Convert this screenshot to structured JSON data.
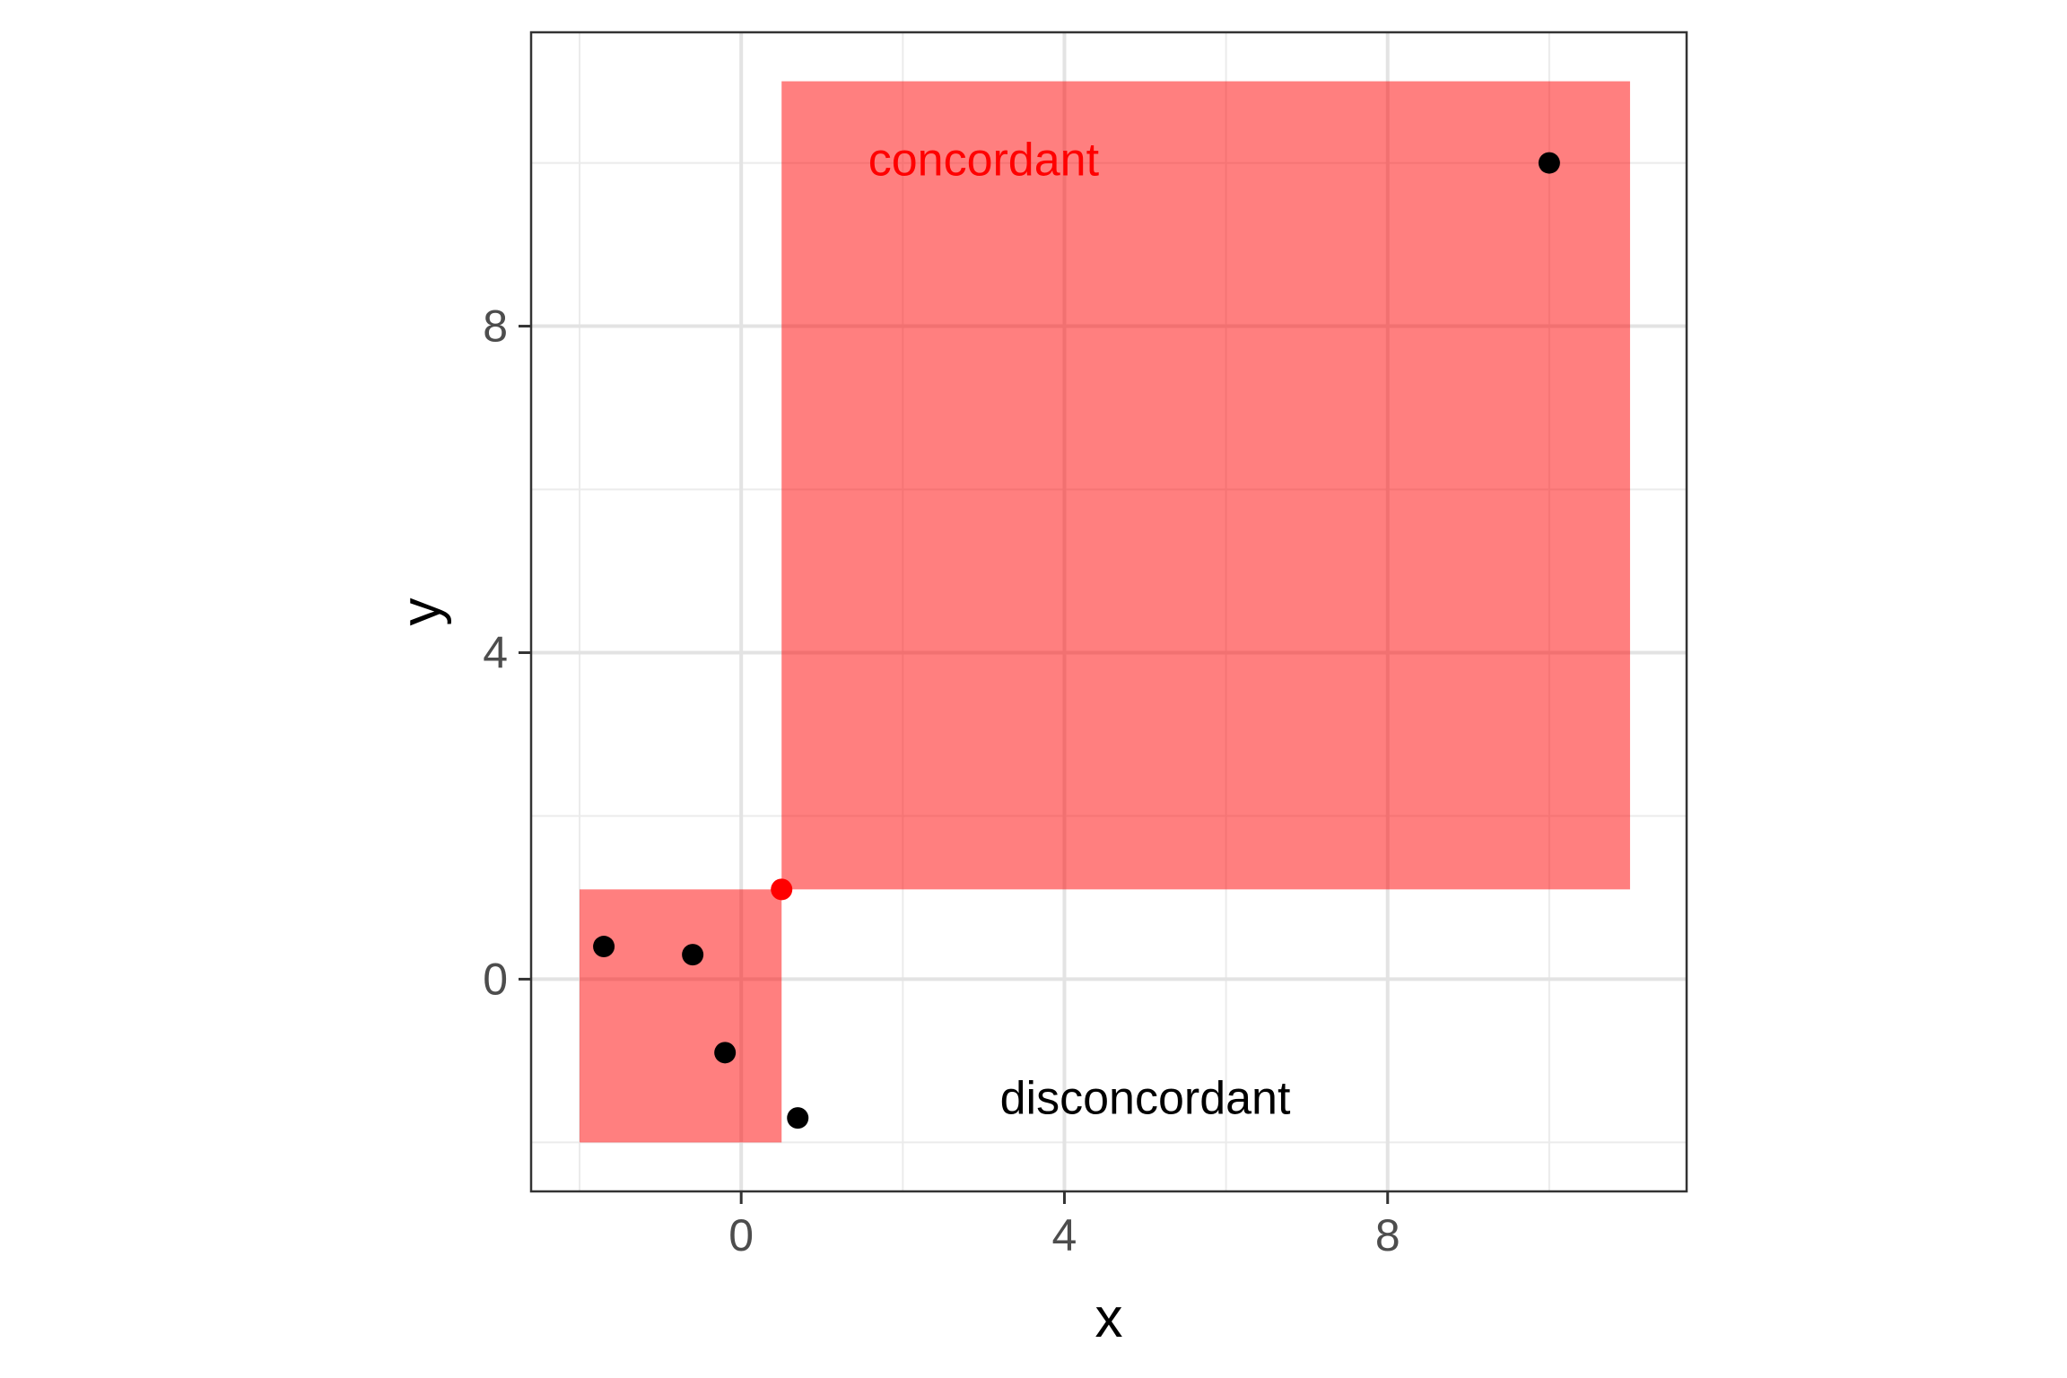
{
  "chart_data": {
    "type": "scatter",
    "title": "",
    "xlabel": "x",
    "ylabel": "y",
    "xlim": [
      -2.6,
      11.7
    ],
    "ylim": [
      -2.6,
      11.6
    ],
    "x_ticks": [
      0,
      4,
      8
    ],
    "y_ticks": [
      0,
      4,
      8
    ],
    "x_minor": [
      -2,
      2,
      6,
      10
    ],
    "y_minor": [
      -2,
      2,
      6,
      10
    ],
    "grid": true,
    "regions": [
      {
        "x_range": [
          0.5,
          11.0
        ],
        "y_range": [
          1.1,
          11.0
        ],
        "color": "#FF0000",
        "opacity": 0.5
      },
      {
        "x_range": [
          -2.0,
          0.5
        ],
        "y_range": [
          -2.0,
          1.1
        ],
        "color": "#FF0000",
        "opacity": 0.5
      }
    ],
    "points": [
      {
        "x": -1.7,
        "y": 0.4,
        "color": "#000000"
      },
      {
        "x": -0.6,
        "y": 0.3,
        "color": "#000000"
      },
      {
        "x": -0.2,
        "y": -0.9,
        "color": "#000000"
      },
      {
        "x": 0.7,
        "y": -1.7,
        "color": "#000000"
      },
      {
        "x": 10.0,
        "y": 10.0,
        "color": "#000000"
      },
      {
        "x": 0.5,
        "y": 1.1,
        "color": "#FF0000"
      }
    ],
    "annotations": [
      {
        "text": "concordant",
        "x": 3.0,
        "y": 10.0,
        "color": "#FF0000"
      },
      {
        "text": "disconcordant",
        "x": 5.0,
        "y": -1.5,
        "color": "#000000"
      }
    ]
  }
}
